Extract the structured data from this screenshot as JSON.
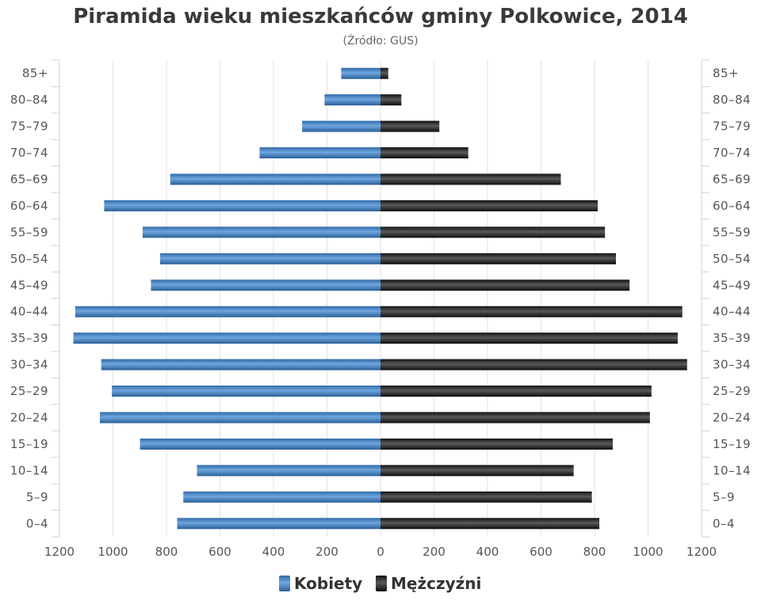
{
  "chart_data": {
    "type": "bar",
    "orientation": "horizontal-population-pyramid",
    "title": "Piramida wieku mieszkańców gminy Polkowice, 2014",
    "subtitle": "(Źródło: GUS)",
    "categories": [
      "85+",
      "80–84",
      "75–79",
      "70–74",
      "65–69",
      "60–64",
      "55–59",
      "50–54",
      "45–49",
      "40–44",
      "35–39",
      "30–34",
      "25–29",
      "20–24",
      "15–19",
      "10–14",
      "5–9",
      "0–4"
    ],
    "series": [
      {
        "name": "Kobiety",
        "color": "#3d7fc4",
        "side": "left",
        "values": [
          147,
          209,
          293,
          452,
          786,
          1033,
          889,
          824,
          858,
          1141,
          1148,
          1044,
          1004,
          1049,
          899,
          686,
          737,
          760
        ]
      },
      {
        "name": "Mężczyźni",
        "color": "#1a1a1a",
        "side": "right",
        "values": [
          29,
          78,
          220,
          328,
          674,
          812,
          839,
          880,
          931,
          1128,
          1111,
          1146,
          1013,
          1007,
          868,
          722,
          790,
          818
        ]
      }
    ],
    "x_ticks_left": [
      "1200",
      "1000",
      "800",
      "600",
      "400",
      "200",
      "0"
    ],
    "x_ticks_right": [
      "0",
      "200",
      "400",
      "600",
      "800",
      "1000",
      "1200"
    ],
    "xlim": [
      0,
      1200
    ],
    "grid": true,
    "legend": {
      "placement": "bottom-center",
      "items": [
        "Kobiety",
        "Mężczyźni"
      ]
    }
  }
}
